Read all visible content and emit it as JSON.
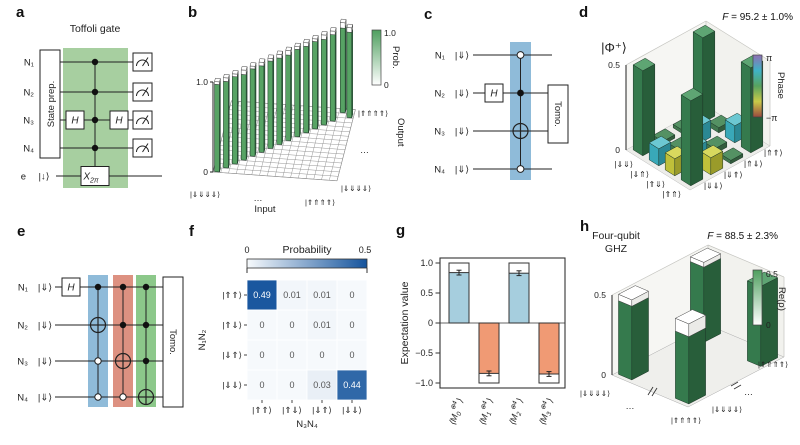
{
  "panels": {
    "a": {
      "label": "a",
      "title": "Toffoli gate",
      "wires": [
        "N₁",
        "N₂",
        "N₃",
        "N₄"
      ],
      "e_wire": "e",
      "e_ket": "|↓⟩",
      "state_prep": "State prep.",
      "h_gate": "H",
      "x_gate_base": "X",
      "x_gate_sub": "2π"
    },
    "b": {
      "label": "b"
    },
    "c": {
      "label": "c",
      "wires": [
        "N₁",
        "N₂",
        "N₃",
        "N₄"
      ],
      "kets": [
        "|⇓⟩",
        "|⇓⟩",
        "|⇓⟩",
        "|⇓⟩"
      ],
      "h_gate": "H",
      "tomo": "Tomo."
    },
    "d": {
      "label": "d"
    },
    "e": {
      "label": "e",
      "wires": [
        "N₁",
        "N₂",
        "N₃",
        "N₄"
      ],
      "kets": [
        "|⇓⟩",
        "|⇓⟩",
        "|⇓⟩",
        "|⇓⟩"
      ],
      "h_gate": "H",
      "tomo": "Tomo."
    },
    "f": {
      "label": "f"
    },
    "g": {
      "label": "g"
    },
    "h": {
      "label": "h"
    }
  },
  "colors": {
    "circuit_green": "#a7cfa0",
    "band_blue": "#8fbbd9",
    "band_red": "#dd9181",
    "band_green": "#8cc88a",
    "bar_green_front": "#57a364",
    "bar_green_side": "#3a7a4b",
    "bar_green_top": "#8fca9c",
    "dm_green_front": "#357a4d",
    "dm_green_side": "#285e3a",
    "dm_green_top": "#5ea573",
    "dm_teal_front": "#39a8b8",
    "dm_teal_side": "#2b8894",
    "dm_teal_top": "#6cc8d2",
    "dm_yellow_front": "#bfc03a",
    "dm_yellow_side": "#9a9b2a",
    "dm_yellow_top": "#d8d95e",
    "heat_blue": "#15549d",
    "pos_blue": "#a6cede",
    "neg_orange": "#f09a74"
  },
  "chart_data": [
    {
      "panel": "b",
      "type": "bar3d",
      "n": 16,
      "zlim": [
        0,
        1.0
      ],
      "z_ticks": [
        "1.0",
        "0"
      ],
      "xlabel": "Input",
      "ylabel": "Output",
      "x_axis_labels": [
        "|⇓⇓⇓⇓⟩",
        "…",
        "|⇑⇑⇑⇑⟩"
      ],
      "y_axis_labels": [
        "|⇓⇓⇓⇓⟩",
        "…",
        "|⇑⇑⇑⇑⟩"
      ],
      "colorbar": {
        "label": "Prob.",
        "top": "1.0",
        "bottom": "0"
      },
      "ideal": 1.0,
      "bars": [
        {
          "in": 0,
          "out": 0,
          "p": 0.97
        },
        {
          "in": 1,
          "out": 1,
          "p": 0.96
        },
        {
          "in": 2,
          "out": 2,
          "p": 0.97
        },
        {
          "in": 3,
          "out": 3,
          "p": 0.95
        },
        {
          "in": 4,
          "out": 4,
          "p": 0.97
        },
        {
          "in": 5,
          "out": 5,
          "p": 0.96
        },
        {
          "in": 6,
          "out": 6,
          "p": 0.97
        },
        {
          "in": 7,
          "out": 7,
          "p": 0.96
        },
        {
          "in": 8,
          "out": 8,
          "p": 0.95
        },
        {
          "in": 9,
          "out": 9,
          "p": 0.97
        },
        {
          "in": 10,
          "out": 10,
          "p": 0.96
        },
        {
          "in": 11,
          "out": 11,
          "p": 0.97
        },
        {
          "in": 12,
          "out": 12,
          "p": 0.95
        },
        {
          "in": 13,
          "out": 13,
          "p": 0.96
        },
        {
          "in": 14,
          "out": 15,
          "p": 0.94
        },
        {
          "in": 15,
          "out": 14,
          "p": 0.95
        }
      ]
    },
    {
      "panel": "d",
      "type": "bar3d_density",
      "state_label": "|Φ⁺⟩",
      "fidelity_prefix": "F",
      "fidelity_rest": " = 95.2 ± 1.0%",
      "zlim": [
        0,
        0.5
      ],
      "z_ticks": [
        "0.5",
        "0"
      ],
      "row_labels": [
        "|⇓⇓⟩",
        "|⇓⇑⟩",
        "|⇑⇓⟩",
        "|⇑⇑⟩"
      ],
      "col_labels": [
        "|⇓⇓⟩",
        "|⇓⇑⟩",
        "|⇑⇓⟩",
        "|⇑⇑⟩"
      ],
      "colorbar": {
        "label": "Phase",
        "top": "π",
        "bottom": "−π"
      },
      "ideal": 0.5,
      "re_matrix": [
        [
          0.5,
          0.02,
          0.02,
          0.5
        ],
        [
          0.1,
          0.03,
          0.1,
          0.03
        ],
        [
          0.1,
          0.1,
          0.03,
          0.1
        ],
        [
          0.5,
          0.1,
          0.02,
          0.5
        ]
      ],
      "phase_matrix": [
        [
          0,
          0,
          0,
          0
        ],
        [
          1.6,
          0,
          1.6,
          0
        ],
        [
          -1.6,
          1.6,
          0,
          1.6
        ],
        [
          0,
          -1.6,
          0,
          0
        ]
      ]
    },
    {
      "panel": "f",
      "type": "heatmap",
      "title": "Probability",
      "cb_ticks": [
        "0",
        "0.5"
      ],
      "vmax": 0.5,
      "row_axis": "N₁N₂",
      "col_axis": "N₃N₄",
      "rows": [
        "|⇑⇑⟩",
        "|⇑⇓⟩",
        "|⇓⇑⟩",
        "|⇓⇓⟩"
      ],
      "cols": [
        "|⇑⇑⟩",
        "|⇑⇓⟩",
        "|⇓⇑⟩",
        "|⇓⇓⟩"
      ],
      "values": [
        [
          0.49,
          0.01,
          0.01,
          0
        ],
        [
          0,
          0,
          0.01,
          0
        ],
        [
          0,
          0,
          0,
          0
        ],
        [
          0,
          0,
          0.03,
          0.44
        ]
      ]
    },
    {
      "panel": "g",
      "type": "bar",
      "ylabel": "Expectation value",
      "ylim": [
        -1.0,
        1.0
      ],
      "ytick_labels": [
        "1.0",
        "0.5",
        "0",
        "−0.5",
        "−1.0"
      ],
      "ytick_values": [
        1.0,
        0.5,
        0,
        -0.5,
        -1.0
      ],
      "label_open": "⟨M",
      "label_sup": "⊗4",
      "label_close": "⟩",
      "bars": [
        {
          "sub": "0",
          "value": 0.84,
          "ideal": 1.0,
          "err": 0.04
        },
        {
          "sub": "1",
          "value": -0.84,
          "ideal": -1.0,
          "err": 0.04
        },
        {
          "sub": "2",
          "value": 0.83,
          "ideal": 1.0,
          "err": 0.04
        },
        {
          "sub": "3",
          "value": -0.85,
          "ideal": -1.0,
          "err": 0.04
        }
      ]
    },
    {
      "panel": "h",
      "type": "bar3d_ghz",
      "title_line1": "Four-qubit",
      "title_line2": "GHZ",
      "fidelity_prefix": "F",
      "fidelity_rest": " = 88.5 ± 2.3%",
      "zlim": [
        0,
        0.5
      ],
      "z_ticks": [
        "0.5",
        "0"
      ],
      "colorbar": {
        "label": "Re(ρ)",
        "top": "0.5",
        "bottom": "0"
      },
      "x_axis_labels": [
        "|⇓⇓⇓⇓⟩",
        "…",
        "|⇑⇑⇑⇑⟩"
      ],
      "y_axis_labels": [
        "|⇓⇓⇓⇓⟩",
        "…",
        "|⇑⇑⇑⇑⟩"
      ],
      "ideal": 0.5,
      "bars": [
        {
          "i": 0,
          "j": 0,
          "v": 0.46
        },
        {
          "i": 0,
          "j": 3,
          "v": 0.47
        },
        {
          "i": 3,
          "j": 0,
          "v": 0.42
        },
        {
          "i": 3,
          "j": 3,
          "v": 0.5
        }
      ]
    }
  ]
}
